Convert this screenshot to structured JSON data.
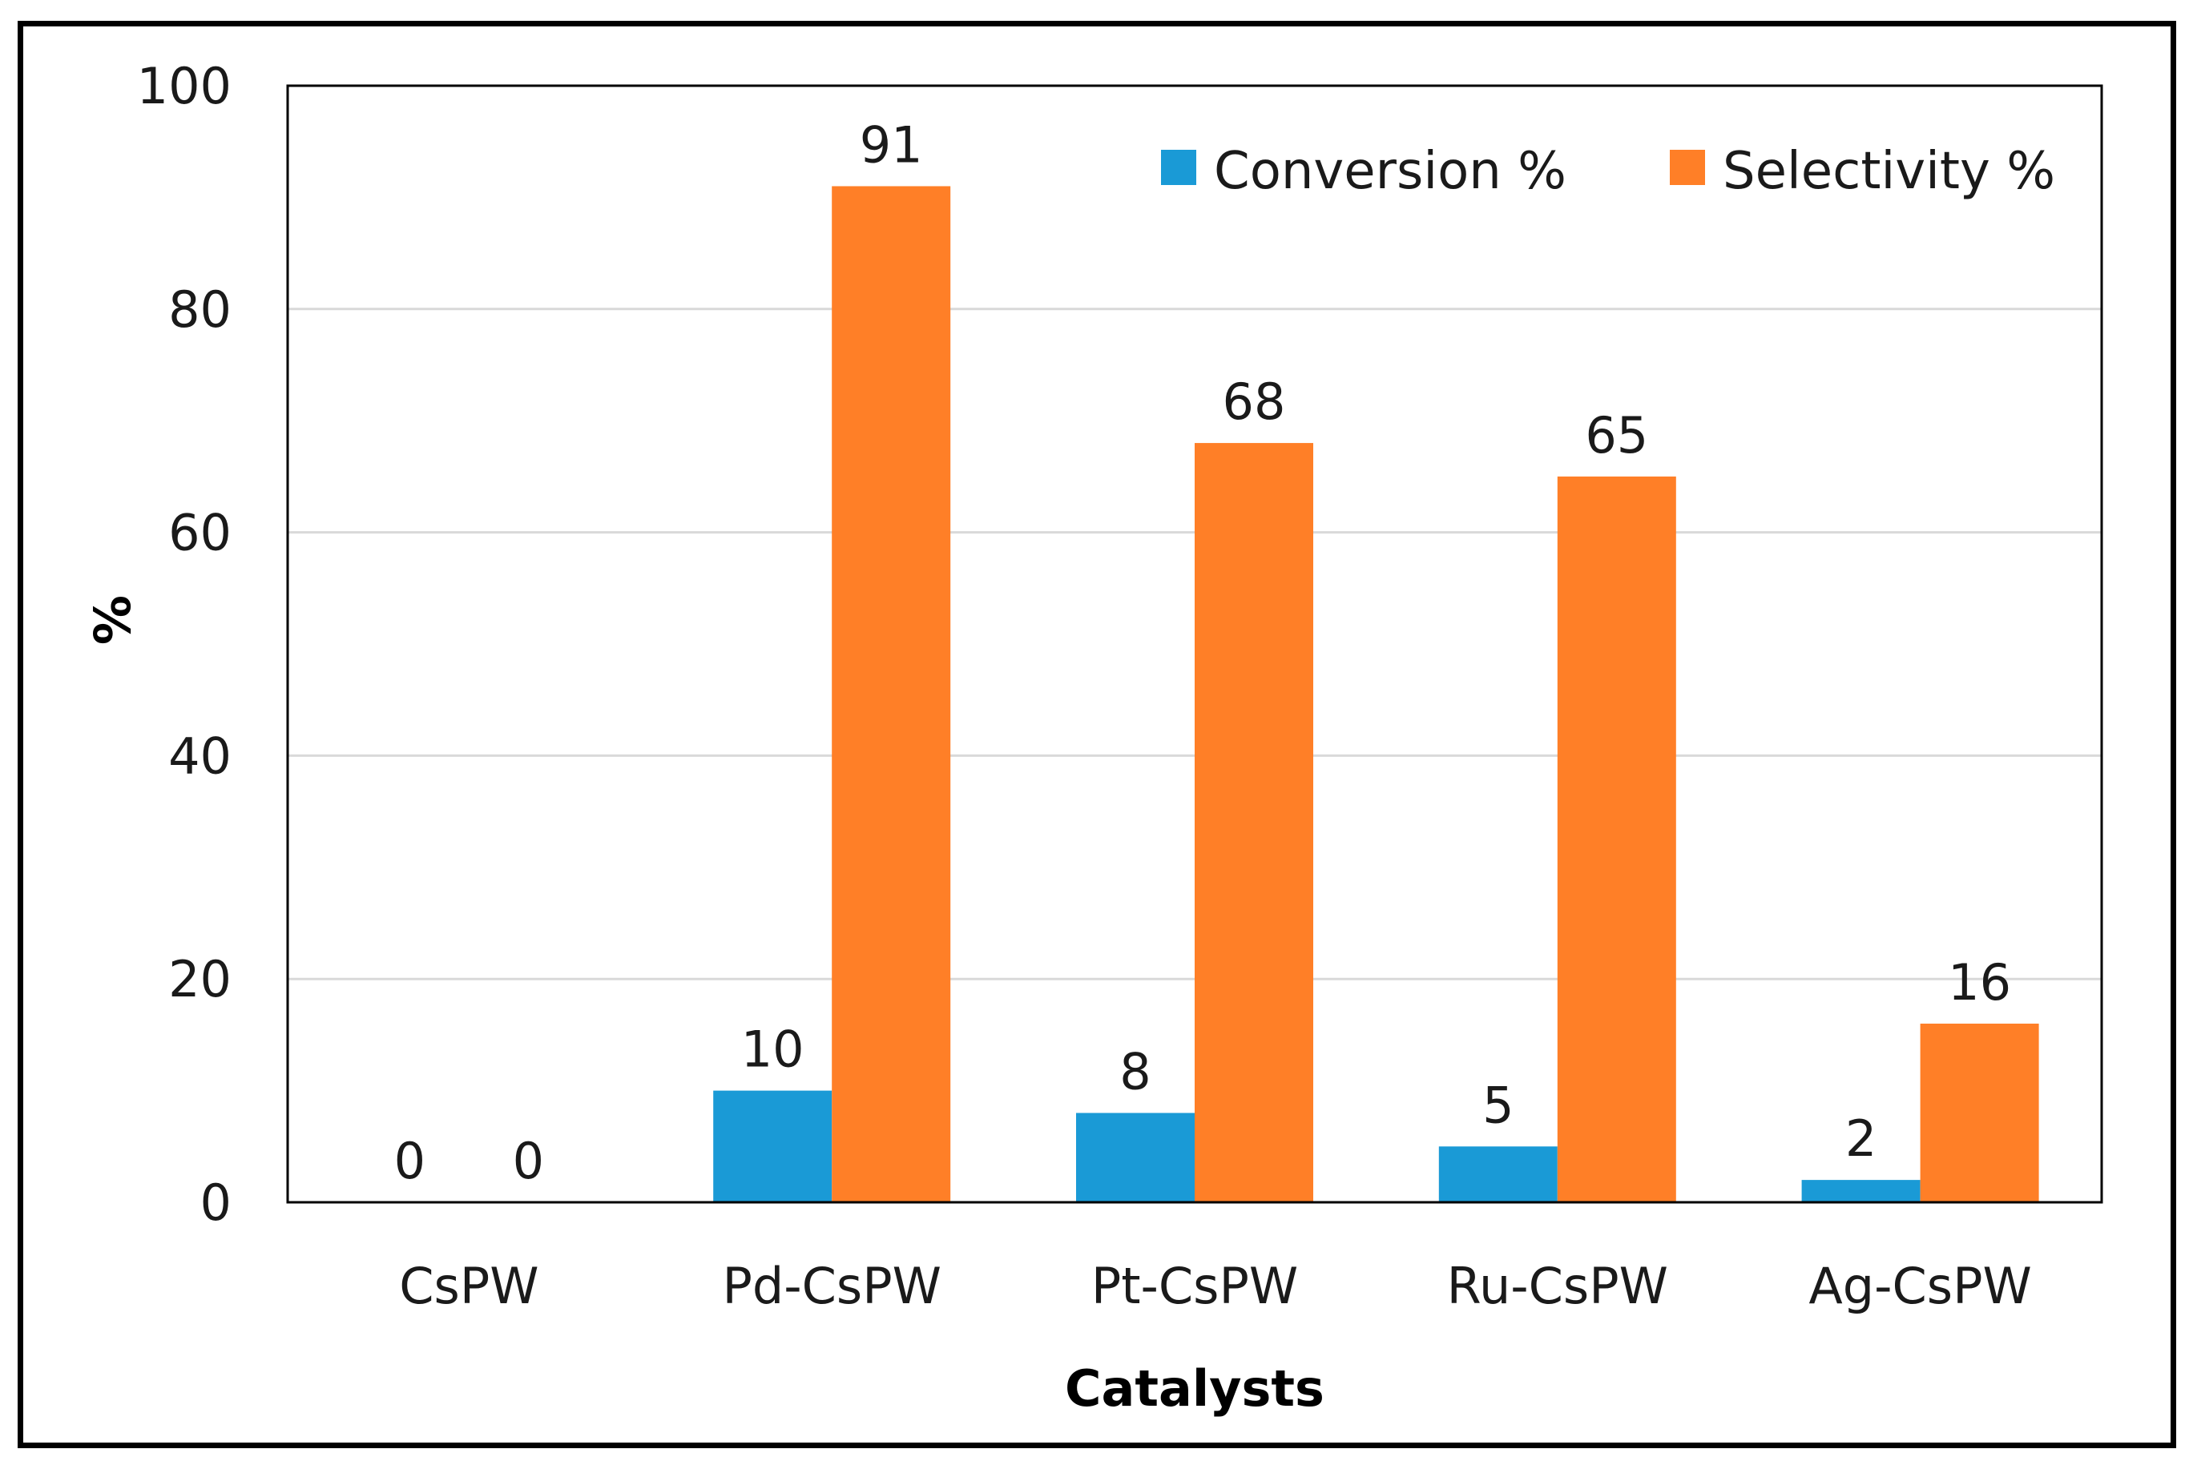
{
  "chart_data": {
    "type": "bar",
    "title": "",
    "xlabel": "Catalysts",
    "ylabel": "%",
    "categories": [
      "CsPW",
      "Pd-CsPW",
      "Pt-CsPW",
      "Ru-CsPW",
      "Ag-CsPW"
    ],
    "series": [
      {
        "name": "Conversion %",
        "values": [
          0,
          10,
          8,
          5,
          2
        ],
        "color": "#1a9ad6"
      },
      {
        "name": "Selectivity %",
        "values": [
          0,
          91,
          68,
          65,
          16
        ],
        "color": "#ff7f27"
      }
    ],
    "ylim": [
      0,
      100
    ],
    "yticks": [
      0,
      20,
      40,
      60,
      80,
      100
    ],
    "grid": true,
    "legend_position": "top-right",
    "data_labels": true
  }
}
